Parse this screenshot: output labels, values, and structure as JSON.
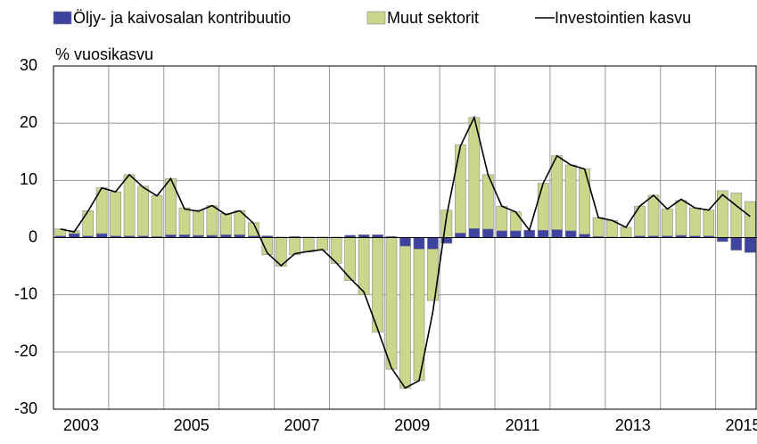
{
  "chart_data": {
    "type": "bar",
    "y_label": "% vuosikasvu",
    "categories": [
      null,
      "2003",
      null,
      null,
      null,
      null,
      null,
      null,
      null,
      "2005",
      null,
      null,
      null,
      null,
      null,
      null,
      null,
      "2007",
      null,
      null,
      null,
      null,
      null,
      null,
      null,
      "2009",
      null,
      null,
      null,
      null,
      null,
      null,
      null,
      "2011",
      null,
      null,
      null,
      null,
      null,
      null,
      null,
      "2013",
      null,
      null,
      null,
      null,
      null,
      null,
      null,
      "2015",
      null
    ],
    "series": [
      {
        "name": "Öljy- ja kaivosalan kontribuutio",
        "kind": "bar",
        "color": "#3f43a0",
        "values": [
          0.3,
          0.7,
          0.3,
          0.7,
          0.3,
          0.3,
          0.3,
          0.2,
          0.5,
          0.5,
          0.4,
          0.4,
          0.5,
          0.5,
          0.3,
          0.3,
          0.1,
          0.2,
          0.1,
          0.1,
          0.1,
          0.4,
          0.5,
          0.5,
          0.2,
          -1.5,
          -2,
          -2,
          -1,
          0.8,
          1.6,
          1.5,
          1.2,
          1.2,
          1.3,
          1.3,
          1.4,
          1.2,
          0.6,
          0.2,
          0.1,
          0.1,
          0.3,
          0.3,
          0.3,
          0.4,
          0.3,
          0.3,
          -0.7,
          -2.2,
          -2.6
        ]
      },
      {
        "name": "Muut sektorit",
        "kind": "bar",
        "color": "#c9d68c",
        "values": [
          1.2,
          0.5,
          4.4,
          8.0,
          7.7,
          10.7,
          8.7,
          7.1,
          9.8,
          4.7,
          4.4,
          5.2,
          3.7,
          4.2,
          2.3,
          -3,
          -5,
          -3,
          -2.5,
          -2.2,
          -4.5,
          -7.5,
          -10,
          -16.5,
          -23,
          -24.8,
          -23,
          -9,
          4.8,
          15.4,
          19.4,
          9.5,
          4.3,
          3.3,
          0,
          8.2,
          12.9,
          11.5,
          11.4,
          3.3,
          2.9,
          1.7,
          5.2,
          7.1,
          4.7,
          6.1,
          4.9,
          4.5,
          8.2,
          7.8,
          6.3
        ]
      },
      {
        "name": "Investointien kasvu",
        "kind": "line",
        "color": "#000000",
        "values": [
          1.5,
          1.0,
          4.6,
          8.7,
          8.0,
          11.0,
          8.8,
          7.3,
          10.3,
          5.0,
          4.6,
          5.6,
          4.0,
          4.7,
          2.5,
          -2.7,
          -4.9,
          -2.8,
          -2.4,
          -2.1,
          -4.4,
          -7.1,
          -9.5,
          -16.0,
          -22.8,
          -26.3,
          -25.0,
          -13.0,
          3.8,
          16.0,
          21.0,
          11.0,
          5.5,
          4.5,
          1.3,
          9.5,
          14.3,
          12.7,
          12.0,
          3.5,
          3.0,
          1.8,
          5.5,
          7.4,
          5.0,
          6.7,
          5.2,
          4.8,
          7.5,
          5.6,
          3.7
        ]
      }
    ],
    "ylim": [
      -30,
      30
    ],
    "yticks": [
      -30,
      -20,
      -10,
      0,
      10,
      20,
      30
    ],
    "grid": true
  }
}
